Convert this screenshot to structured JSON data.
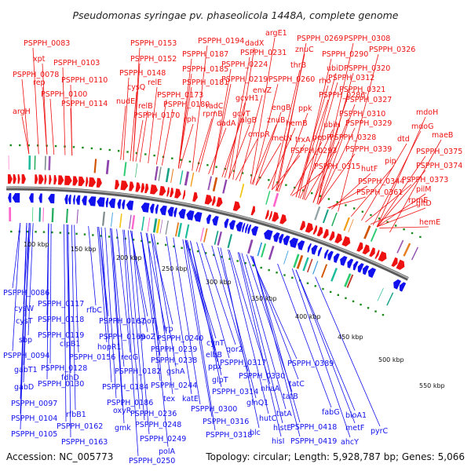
{
  "header": {
    "title": "Pseudomonas syringae pv. phaseolicola 1448A, complete genome"
  },
  "footer": {
    "accession": "Accession: NC_005773",
    "stats": "Topology: circular; Length: 5,928,787 bp; Genes: 5,066"
  },
  "colors": {
    "forward": "#ee1111",
    "reverse": "#1111ee",
    "backbone": "#888888",
    "dots": "#1a8a1a"
  },
  "kbp_labels": [
    "100 kbp",
    "150 kbp",
    "200 kbp",
    "250 kbp",
    "300 kbp",
    "350 kbp",
    "400 kbp",
    "450 kbp",
    "500 kbp",
    "550 kbp"
  ],
  "forward_labels": [
    "PSPPH_0083",
    "xpt",
    "PSPPH_0078",
    "PSPPH_0103",
    "rep",
    "PSPPH_0110",
    "argH",
    "PSPPH_0100",
    "PSPPH_0114",
    "PSPPH_0153",
    "PSPPH_0152",
    "PSPPH_0148",
    "cysQ",
    "relE",
    "nudE",
    "relB",
    "PSPPH_0170",
    "PSPPH_0194",
    "PSPPH_0187",
    "PSPPH_0185",
    "PSPPH_0181",
    "PSPPH_0173",
    "PSPPH_0180",
    "rph",
    "rpmB",
    "radC",
    "argE1",
    "dadX",
    "PSPPH_0231",
    "PSPPH_0224",
    "PSPPH_0219",
    "gcvH1",
    "gcvT",
    "dadA",
    "envZ",
    "algB",
    "ompR",
    "PSPPH_0269",
    "znuC",
    "thrB",
    "PSPPH_0260",
    "engB",
    "znuB",
    "metN",
    "hemB",
    "ppk",
    "PSPPH_0308",
    "PSPPH_0290",
    "PSPPH_0326",
    "ubiD",
    "rho",
    "PSPPH_0286",
    "PSPPH_0320",
    "PSPPH_0312",
    "PSPPH_0321",
    "PSPPH_0327",
    "PSPPH_0310",
    "ubiH",
    "PSPPH_0329",
    "PSPPH_0328",
    "trxA",
    "pepP",
    "PSPPH_0293",
    "PSPPH_0339",
    "PSPPH_0315",
    "hutF",
    "PSPPH_0344",
    "PSPPH_0361",
    "mdoH",
    "mdoG",
    "dtd",
    "pip",
    "maeB",
    "PSPPH_0375",
    "PSPPH_0374",
    "PSPPH_0373",
    "pilM",
    "rpmE",
    "gltD",
    "hemE"
  ],
  "reverse_labels": [
    "PSPPH_0086",
    "cysW",
    "cysT",
    "sbp",
    "PSPPH_0094",
    "gabT1",
    "gabD",
    "PSPPH_0097",
    "PSPPH_0104",
    "PSPPH_0105",
    "PSPPH_0117",
    "PSPPH_0118",
    "PSPPH_0119",
    "clpB1",
    "PSPPH_0128",
    "PSPPH_0130",
    "fdhD",
    "rfbB1",
    "rfbC",
    "PSPPH_0167",
    "PSPPH_0169",
    "hopR1",
    "PSPPH_0156",
    "PSPPH_0162",
    "PSPPH_0163",
    "recG",
    "PSPPH_0182",
    "PSPPH_0184",
    "PSPPH_0186",
    "oxyR",
    "gmk",
    "spoT",
    "rpoZ",
    "PSPPH_0236",
    "PSPPH_0248",
    "PSPPH_0249",
    "PSPPH_0250",
    "polA",
    "lrp",
    "PSPPH_0240",
    "PSPPH_0239",
    "PSPPH_0238",
    "gshA",
    "PSPPH_0244",
    "tex",
    "katE",
    "cynT",
    "elbB",
    "ppx",
    "glpT",
    "PSPPH_0300",
    "PSPPH_0316",
    "PSPPH_0318",
    "qor2",
    "PSPPH_0317",
    "PSPPH_0330",
    "PSPPH_0314",
    "nhaA",
    "glnQ1",
    "hutC",
    "blc",
    "tatB",
    "tatA",
    "histE",
    "hisI",
    "PSPPH_0389",
    "tatC",
    "PSPPH_0418",
    "PSPPH_0419",
    "fabG",
    "bioA1",
    "metF",
    "ahcY",
    "pyrC"
  ]
}
